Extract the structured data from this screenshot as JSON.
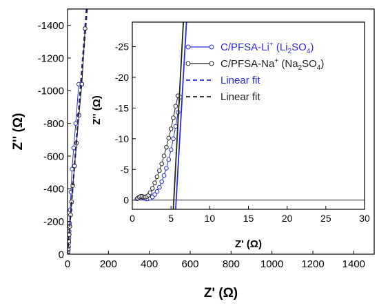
{
  "chart_data": [
    {
      "type": "scatter",
      "xlabel_main": "Z'",
      "xlabel_unit": " (Ω)",
      "ylabel_main": "Z''",
      "ylabel_unit": " (Ω)",
      "xlim": [
        0,
        1500
      ],
      "ylim": [
        0,
        -1500
      ],
      "xticks": [
        0,
        200,
        400,
        600,
        800,
        1000,
        1200,
        1400
      ],
      "yticks": [
        0,
        -200,
        -400,
        -600,
        -800,
        -1000,
        -1200,
        -1400
      ],
      "series": [
        {
          "key": "li",
          "color": "#2b2bd4",
          "marker": "open-circle",
          "x": [
            0,
            2,
            3,
            4,
            5,
            6,
            7,
            8,
            10,
            13,
            17,
            22,
            30,
            40,
            55,
            70
          ],
          "y": [
            0,
            -10,
            -20,
            -30,
            -45,
            -70,
            -100,
            -140,
            -190,
            -270,
            -380,
            -520,
            -650,
            -800,
            -1040,
            -1040
          ]
        },
        {
          "key": "na",
          "color": "#222222",
          "marker": "open-circle",
          "x": [
            0,
            2,
            3,
            4,
            6,
            8,
            11,
            15,
            20,
            26,
            34,
            44,
            56,
            70,
            86
          ],
          "y": [
            0,
            -15,
            -30,
            -50,
            -80,
            -120,
            -170,
            -240,
            -320,
            -420,
            -540,
            -680,
            -850,
            -1040,
            -1380
          ]
        },
        {
          "key": "li-fit",
          "color": "#2b2bd4",
          "dashed": true,
          "x": [
            0,
            92
          ],
          "y": [
            0,
            -1500
          ]
        },
        {
          "key": "na-fit",
          "color": "#222222",
          "dashed": true,
          "x": [
            0,
            96
          ],
          "y": [
            0,
            -1500
          ]
        }
      ]
    },
    {
      "type": "scatter",
      "inset": true,
      "xlabel_main": "Z'",
      "xlabel_unit": " (Ω)",
      "ylabel_main": "Z''",
      "ylabel_unit": " (Ω)",
      "xlim": [
        0,
        30
      ],
      "ylim": [
        1.5,
        -29
      ],
      "xticks": [
        0,
        5,
        10,
        15,
        20,
        25,
        30
      ],
      "yticks": [
        0,
        -5,
        -10,
        -15,
        -20,
        -25
      ],
      "series": [
        {
          "key": "li",
          "color": "#2b2bd4",
          "marker": "open-circle",
          "x": [
            0.6,
            0.8,
            1.0,
            1.2,
            1.4,
            1.6,
            1.8,
            2.0,
            2.3,
            2.6,
            2.9,
            3.2,
            3.5,
            3.8,
            4.1,
            4.4,
            4.7,
            5.0,
            5.3,
            5.6,
            5.9,
            6.2
          ],
          "y": [
            -0.2,
            -0.4,
            -0.5,
            -0.5,
            -0.4,
            -0.3,
            -0.2,
            -0.2,
            -0.3,
            -0.5,
            -0.9,
            -1.4,
            -2.1,
            -3.0,
            -4.0,
            -5.2,
            -6.6,
            -8.2,
            -10.0,
            -12.0,
            -14.3,
            -16.8
          ]
        },
        {
          "key": "na",
          "color": "#222222",
          "marker": "open-circle",
          "x": [
            0.7,
            0.9,
            1.1,
            1.3,
            1.5,
            1.7,
            1.9,
            2.1,
            2.3,
            2.6,
            2.9,
            3.2,
            3.5,
            3.8,
            4.1,
            4.4,
            4.7,
            5.0,
            5.3,
            5.6,
            5.9
          ],
          "y": [
            -0.3,
            -0.5,
            -0.6,
            -0.6,
            -0.5,
            -0.5,
            -0.6,
            -0.8,
            -1.2,
            -1.9,
            -2.8,
            -3.8,
            -4.8,
            -5.9,
            -7.2,
            -8.6,
            -10.1,
            -11.6,
            -13.4,
            -15.3,
            -17.0
          ]
        },
        {
          "key": "li-fit",
          "color": "#2b2bd4",
          "dashed": false,
          "x": [
            5.6,
            7.0
          ],
          "y": [
            1.5,
            -29
          ]
        },
        {
          "key": "na-fit",
          "color": "#222222",
          "dashed": false,
          "x": [
            5.3,
            6.6
          ],
          "y": [
            1.5,
            -29
          ]
        }
      ],
      "hline": 0,
      "legend": {
        "position": "top-right",
        "items": [
          {
            "key": "li",
            "style": "marker-line",
            "color": "#2b2bd4",
            "text": "C/PFSA-Li",
            "sup": "+",
            "rest": " (Li",
            "sub1": "2",
            "mid": "SO",
            "sub2": "4",
            "end": ")"
          },
          {
            "key": "na",
            "style": "marker-line",
            "color": "#222222",
            "text": "C/PFSA-Na",
            "sup": "+",
            "rest": " (Na",
            "sub1": "2",
            "mid": "SO",
            "sub2": "4",
            "end": ")"
          },
          {
            "key": "li-fit",
            "style": "dashed",
            "color": "#2b2bd4",
            "text": "Linear fit"
          },
          {
            "key": "na-fit",
            "style": "dashed",
            "color": "#222222",
            "text": "Linear fit"
          }
        ]
      }
    }
  ]
}
